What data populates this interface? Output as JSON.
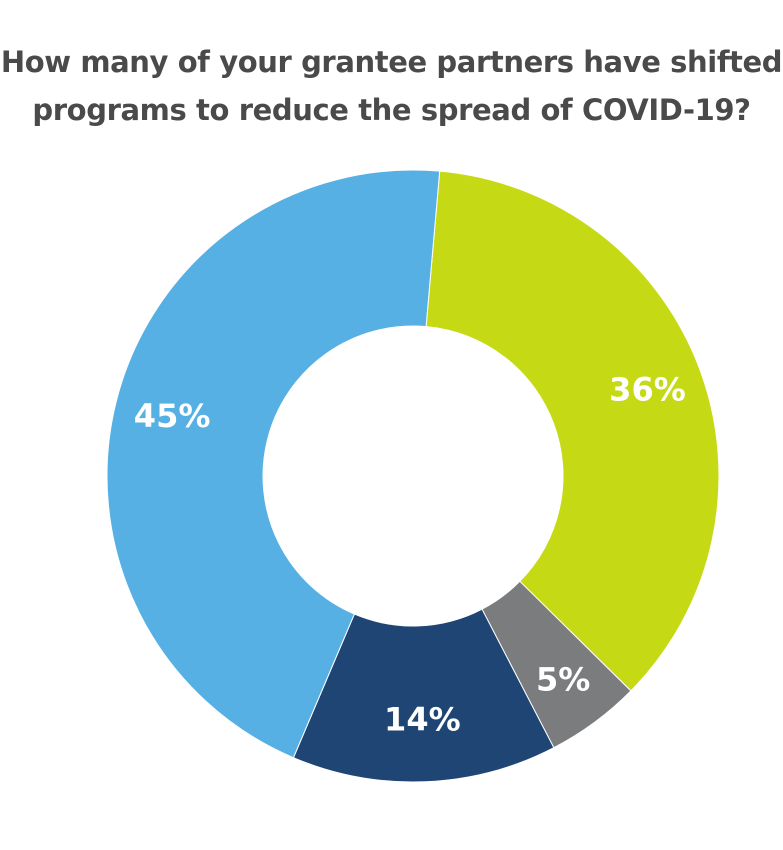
{
  "chart_data": {
    "type": "pie",
    "title_lines": [
      "How many of your grantee partners have shifted",
      "programs to reduce the spread of COVID-19?"
    ],
    "categories": [
      "",
      "",
      "",
      ""
    ],
    "values": [
      36,
      5,
      14,
      45
    ],
    "labels": [
      "36%",
      "5%",
      "14%",
      "45%"
    ],
    "colors": [
      "#c5da15",
      "#7b7c7e",
      "#1f4574",
      "#56b0e3"
    ],
    "donut": true,
    "legend": "none"
  }
}
